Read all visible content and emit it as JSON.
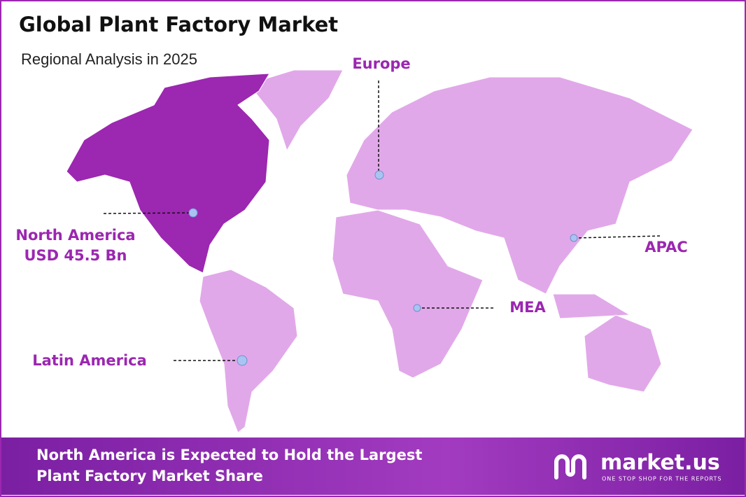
{
  "header": {
    "title": "Global Plant Factory Market",
    "subtitle": "Regional Analysis in 2025"
  },
  "regions": [
    {
      "name": "North America",
      "value_label": "USD 45.5 Bn"
    },
    {
      "name": "Europe"
    },
    {
      "name": "APAC"
    },
    {
      "name": "MEA"
    },
    {
      "name": "Latin America"
    }
  ],
  "footer": {
    "lines": [
      "North America is Expected to Hold the Largest",
      "Plant Factory Market Share"
    ],
    "brand": "market.us",
    "tagline": "ONE STOP SHOP FOR THE REPORTS"
  }
}
